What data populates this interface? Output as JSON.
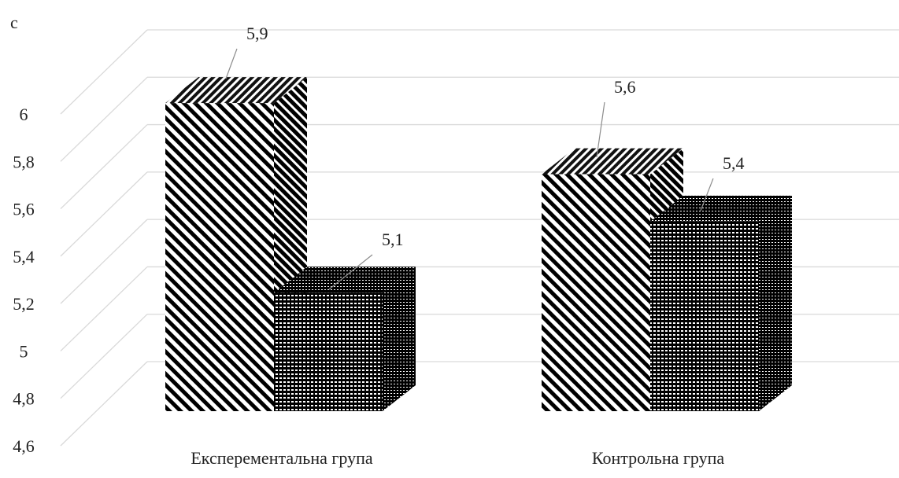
{
  "chart_data": {
    "type": "bar",
    "ylabel": "с",
    "categories": [
      "Експерементальна група",
      "Контрольна група"
    ],
    "series": [
      {
        "values": [
          5.9,
          5.6
        ],
        "pattern": "diagonal-stripes"
      },
      {
        "values": [
          5.1,
          5.4
        ],
        "pattern": "dense-checker"
      }
    ],
    "data_labels": [
      [
        "5,9",
        "5,6"
      ],
      [
        "5,1",
        "5,4"
      ]
    ],
    "ylim": [
      4.6,
      6.0
    ],
    "yticks": [
      "4,6",
      "4,8",
      "5",
      "5,2",
      "5,4",
      "5,6",
      "5,8",
      "6"
    ],
    "grid": true,
    "legend": "none",
    "style": "3d-column"
  }
}
